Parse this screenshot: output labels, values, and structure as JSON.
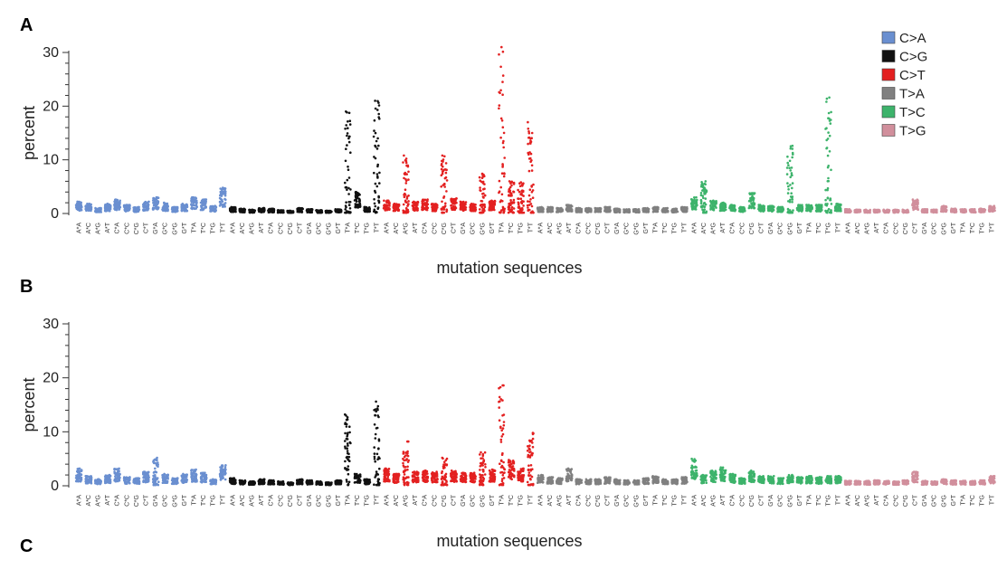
{
  "figure": {
    "panel_labels": [
      "A",
      "B",
      "C"
    ]
  },
  "colors": {
    "C>A": "#6a8fd0",
    "C>G": "#111111",
    "C>T": "#e32020",
    "T>A": "#808080",
    "T>C": "#3db36b",
    "T>G": "#d18f9c"
  },
  "chart_data": [
    {
      "panel": "A",
      "type": "scatter",
      "xlabel": "mutation sequences",
      "ylabel": "percent",
      "ylim": [
        0,
        30
      ],
      "yticks": [
        0,
        10,
        20,
        30
      ],
      "legend_position": "top-right",
      "groups": [
        "C>A",
        "C>G",
        "C>T",
        "T>A",
        "T>C",
        "T>G"
      ],
      "contexts": [
        "A*A",
        "A*C",
        "A*G",
        "A*T",
        "C*A",
        "C*C",
        "C*G",
        "C*T",
        "G*A",
        "G*C",
        "G*G",
        "G*T",
        "T*A",
        "T*C",
        "T*G",
        "T*T"
      ],
      "series": [
        {
          "name": "C>A",
          "max": [
            2.2,
            1.8,
            1.0,
            1.8,
            2.6,
            1.6,
            1.2,
            2.2,
            3.0,
            2.0,
            1.2,
            1.8,
            3.0,
            2.6,
            1.4,
            4.8
          ]
        },
        {
          "name": "C>G",
          "max": [
            1.2,
            0.9,
            0.7,
            1.0,
            0.9,
            0.6,
            0.5,
            1.0,
            0.8,
            0.6,
            0.5,
            0.8,
            19.0,
            4.0,
            1.2,
            21.0
          ]
        },
        {
          "name": "C>T",
          "max": [
            2.4,
            1.8,
            10.8,
            2.2,
            2.6,
            1.8,
            10.8,
            2.8,
            2.2,
            1.8,
            7.4,
            2.4,
            31.0,
            6.0,
            5.8,
            17.0
          ]
        },
        {
          "name": "T>A",
          "max": [
            1.2,
            1.2,
            1.0,
            1.6,
            1.0,
            1.0,
            1.0,
            1.2,
            0.9,
            0.8,
            0.8,
            1.0,
            1.2,
            1.0,
            0.9,
            1.2
          ]
        },
        {
          "name": "T>C",
          "max": [
            3.0,
            6.0,
            2.4,
            2.0,
            1.6,
            1.2,
            3.8,
            1.6,
            1.4,
            1.2,
            12.6,
            1.6,
            1.6,
            1.6,
            21.6,
            1.8
          ]
        },
        {
          "name": "T>G",
          "max": [
            0.8,
            0.7,
            0.7,
            0.7,
            0.7,
            0.7,
            0.7,
            2.6,
            0.8,
            0.7,
            1.4,
            0.9,
            0.8,
            0.8,
            0.9,
            1.4
          ]
        }
      ]
    },
    {
      "panel": "B",
      "type": "scatter",
      "xlabel": "mutation sequences",
      "ylabel": "percent",
      "ylim": [
        0,
        30
      ],
      "yticks": [
        0,
        10,
        20,
        30
      ],
      "groups": [
        "C>A",
        "C>G",
        "C>T",
        "T>A",
        "T>C",
        "T>G"
      ],
      "contexts": [
        "A*A",
        "A*C",
        "A*G",
        "A*T",
        "C*A",
        "C*C",
        "C*G",
        "C*T",
        "G*A",
        "G*C",
        "G*G",
        "G*T",
        "T*A",
        "T*C",
        "T*G",
        "T*T"
      ],
      "series": [
        {
          "name": "C>A",
          "max": [
            3.2,
            1.8,
            1.2,
            2.0,
            3.2,
            1.6,
            1.4,
            2.6,
            5.2,
            2.2,
            1.4,
            2.2,
            3.0,
            2.4,
            1.2,
            3.8
          ]
        },
        {
          "name": "C>G",
          "max": [
            1.4,
            1.0,
            0.8,
            1.2,
            1.0,
            0.8,
            0.6,
            1.2,
            1.0,
            0.8,
            0.6,
            1.0,
            13.2,
            2.2,
            1.2,
            15.6
          ]
        },
        {
          "name": "C>T",
          "max": [
            3.2,
            2.2,
            8.2,
            2.6,
            2.8,
            2.6,
            5.2,
            2.8,
            2.4,
            2.4,
            6.2,
            3.0,
            18.6,
            4.8,
            3.2,
            9.8
          ]
        },
        {
          "name": "T>A",
          "max": [
            2.0,
            1.6,
            1.4,
            3.2,
            1.2,
            1.2,
            1.2,
            1.6,
            1.2,
            1.0,
            1.0,
            1.4,
            1.8,
            1.2,
            1.2,
            1.6
          ]
        },
        {
          "name": "T>C",
          "max": [
            5.0,
            2.0,
            2.8,
            3.4,
            2.2,
            1.4,
            2.8,
            1.8,
            1.8,
            1.4,
            2.0,
            1.6,
            1.8,
            1.6,
            1.8,
            1.8
          ]
        },
        {
          "name": "T>G",
          "max": [
            0.9,
            0.9,
            0.9,
            1.0,
            0.9,
            0.8,
            1.0,
            2.6,
            0.9,
            0.8,
            1.2,
            1.0,
            0.9,
            0.9,
            1.0,
            1.8
          ]
        }
      ]
    }
  ]
}
